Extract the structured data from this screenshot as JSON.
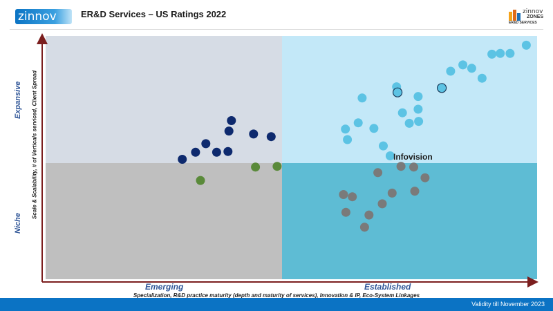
{
  "header": {
    "logo_text": "zinnov",
    "title": "ER&D Services – US Ratings 2022",
    "zones_brand": "zinnov",
    "zones_word": "ZONES",
    "zones_sub": "ER&D SERVICES"
  },
  "footer": {
    "validity": "Validity till November 2023"
  },
  "colors": {
    "quad_top_left": "#d6dce5",
    "quad_top_right": "#c3e8f8",
    "quad_bottom_left": "#bfbfbf",
    "quad_bottom_right": "#5ebcd4",
    "series_dark_blue": "#0e2a6e",
    "series_green": "#5a8a3a",
    "series_light_blue": "#5cc3e4",
    "series_gray": "#7a7a7a",
    "footer": "#0b73c4"
  },
  "chart_data": {
    "type": "scatter",
    "y_categories": [
      "Expansive",
      "Niche"
    ],
    "x_categories": [
      "Emerging",
      "Established"
    ],
    "xlabel": "Specialization, R&D practice maturity (depth and maturity of services), Innovation & IP, Eco-System Linkages",
    "ylabel": "Scale & Scalability, # of Verticals serviced, Client Spread",
    "xlim": [
      0,
      100
    ],
    "ylim": [
      0,
      100
    ],
    "highlight_label": "Infovision",
    "series": [
      {
        "color": "#0e2a6e",
        "points": [
          [
            27.8,
            49.3
          ],
          [
            30.5,
            52.2
          ],
          [
            32.6,
            55.7
          ],
          [
            34.8,
            52.2
          ],
          [
            37.1,
            52.5
          ],
          [
            37.3,
            60.9
          ],
          [
            37.8,
            65.2
          ],
          [
            42.3,
            59.7
          ],
          [
            45.9,
            58.6
          ]
        ]
      },
      {
        "color": "#5a8a3a",
        "points": [
          [
            31.5,
            40.6
          ],
          [
            42.7,
            46.1
          ],
          [
            47.1,
            46.4
          ]
        ]
      },
      {
        "color": "#5cc3e4",
        "points": [
          [
            61.0,
            61.7
          ],
          [
            61.4,
            57.4
          ],
          [
            63.6,
            64.3
          ],
          [
            64.4,
            74.5
          ],
          [
            66.8,
            62.0
          ],
          [
            68.7,
            54.8
          ],
          [
            70.1,
            50.7
          ],
          [
            71.4,
            79.1
          ],
          [
            71.6,
            76.8
          ],
          [
            72.6,
            68.4
          ],
          [
            74.0,
            64.1
          ],
          [
            75.8,
            75.1
          ],
          [
            75.8,
            69.9
          ],
          [
            75.9,
            64.9
          ],
          [
            80.6,
            78.6
          ],
          [
            82.4,
            85.5
          ],
          [
            84.9,
            88.1
          ],
          [
            86.7,
            86.7
          ],
          [
            88.8,
            82.6
          ],
          [
            90.8,
            92.5
          ],
          [
            92.5,
            92.8
          ],
          [
            94.5,
            92.8
          ],
          [
            97.8,
            96.2
          ]
        ]
      },
      {
        "color": "#7a7a7a",
        "points": [
          [
            60.6,
            34.8
          ],
          [
            61.1,
            27.5
          ],
          [
            62.4,
            33.9
          ],
          [
            64.9,
            21.4
          ],
          [
            65.8,
            26.4
          ],
          [
            67.6,
            43.8
          ],
          [
            68.5,
            31.0
          ],
          [
            70.5,
            35.4
          ],
          [
            72.3,
            46.4
          ],
          [
            74.9,
            46.1
          ],
          [
            75.1,
            36.2
          ],
          [
            77.2,
            41.7
          ]
        ]
      },
      {
        "color": "#5cc3e4",
        "outline": true,
        "points": [
          [
            71.6,
            76.8
          ],
          [
            80.6,
            78.6
          ]
        ]
      }
    ]
  }
}
